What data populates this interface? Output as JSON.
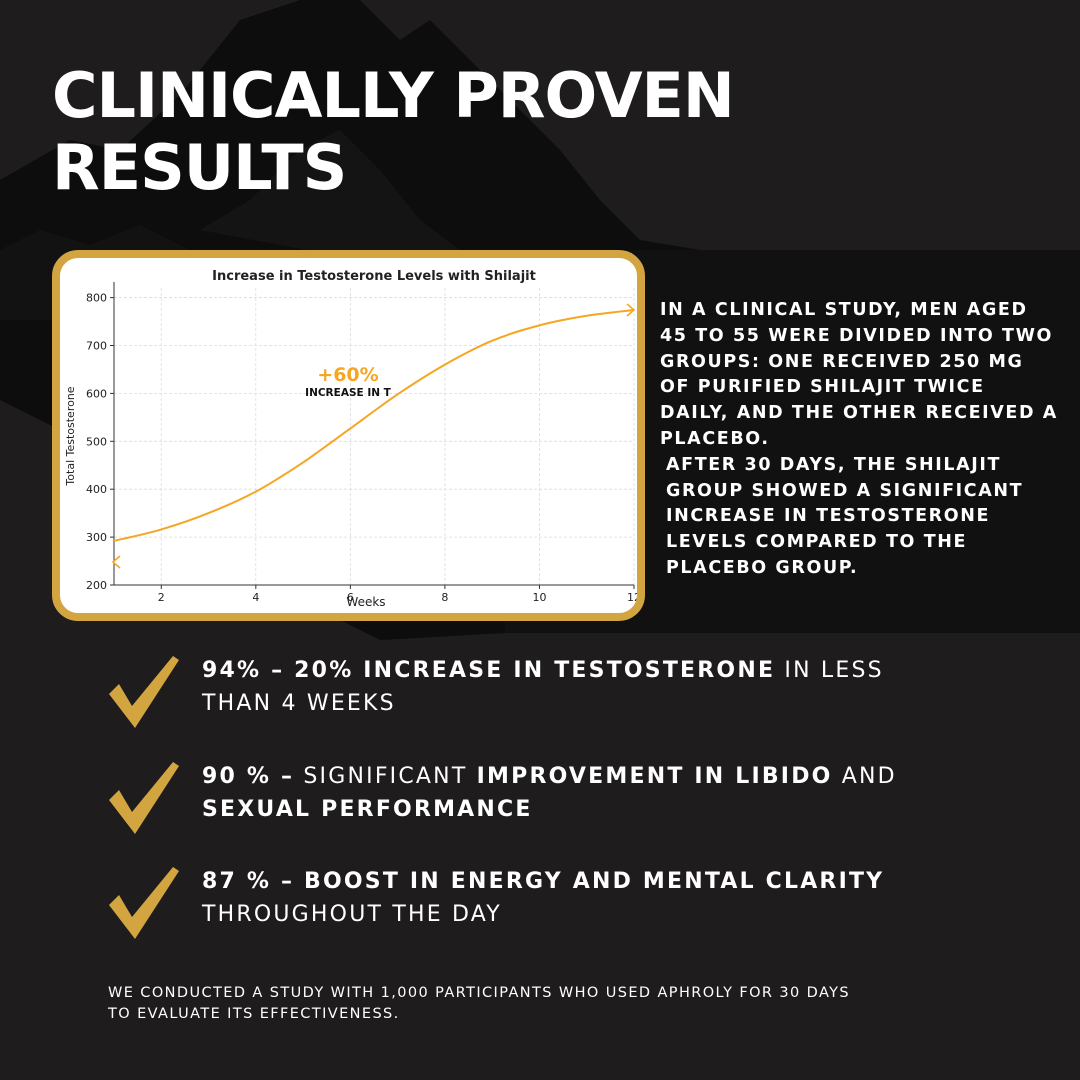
{
  "headline": {
    "line1": "CLINICALLY PROVEN",
    "line2": "RESULTS"
  },
  "colors": {
    "background": "#1e1c1d",
    "panel": "#121112",
    "gold": "#d2a540",
    "curve": "#f5a623",
    "mountain": "#0b0a0b"
  },
  "icons": {
    "nav_left": "chevron-left-icon",
    "nav_right": "chevron-right-icon",
    "check": "checkmark-icon"
  },
  "chart_data": {
    "type": "line",
    "title": "Increase in Testosterone Levels with Shilajit",
    "xlabel": "Weeks",
    "ylabel": "Total Testosterone",
    "xlim": [
      1,
      12
    ],
    "ylim": [
      200,
      820
    ],
    "x_ticks": [
      2,
      4,
      6,
      8,
      10,
      12
    ],
    "y_ticks": [
      200,
      300,
      400,
      500,
      600,
      700,
      800
    ],
    "grid": true,
    "series": [
      {
        "x": [
          1,
          2,
          3,
          4,
          5,
          6,
          7,
          8,
          9,
          10,
          11,
          12
        ],
        "values": [
          292,
          316,
          350,
          395,
          456,
          527,
          598,
          660,
          710,
          742,
          762,
          774
        ]
      }
    ],
    "annotation": {
      "value": "+60%",
      "label": "INCREASE IN T",
      "x": 6.5,
      "y": 615
    }
  },
  "study": {
    "paragraph1": "IN A CLINICAL STUDY, MEN AGED 45 TO 55 WERE DIVIDED INTO TWO GROUPS: ONE RECEIVED 250 MG OF PURIFIED SHILAJIT TWICE DAILY, AND THE OTHER RECEIVED A PLACEBO.",
    "paragraph2": "AFTER 30 DAYS, THE SHILAJIT GROUP SHOWED A SIGNIFICANT INCREASE IN TESTOSTERONE LEVELS COMPARED TO THE PLACEBO GROUP."
  },
  "benefits": [
    {
      "bold1": "94% – 20% INCREASE IN TESTOSTERONE",
      "rest1": " IN LESS THAN 4 WEEKS"
    },
    {
      "bold1": "90 % –",
      "rest1": " SIGNIFICANT ",
      "bold2": "IMPROVEMENT IN LIBIDO",
      "rest2": " AND ",
      "bold3": "SEXUAL PERFORMANCE"
    },
    {
      "bold1": "87 % – BOOST IN ENERGY AND MENTAL CLARITY",
      "rest1": " THROUGHOUT THE DAY"
    }
  ],
  "footnote": "WE CONDUCTED A STUDY WITH 1,000 PARTICIPANTS WHO USED APHROLY FOR 30 DAYS TO EVALUATE ITS EFFECTIVENESS."
}
